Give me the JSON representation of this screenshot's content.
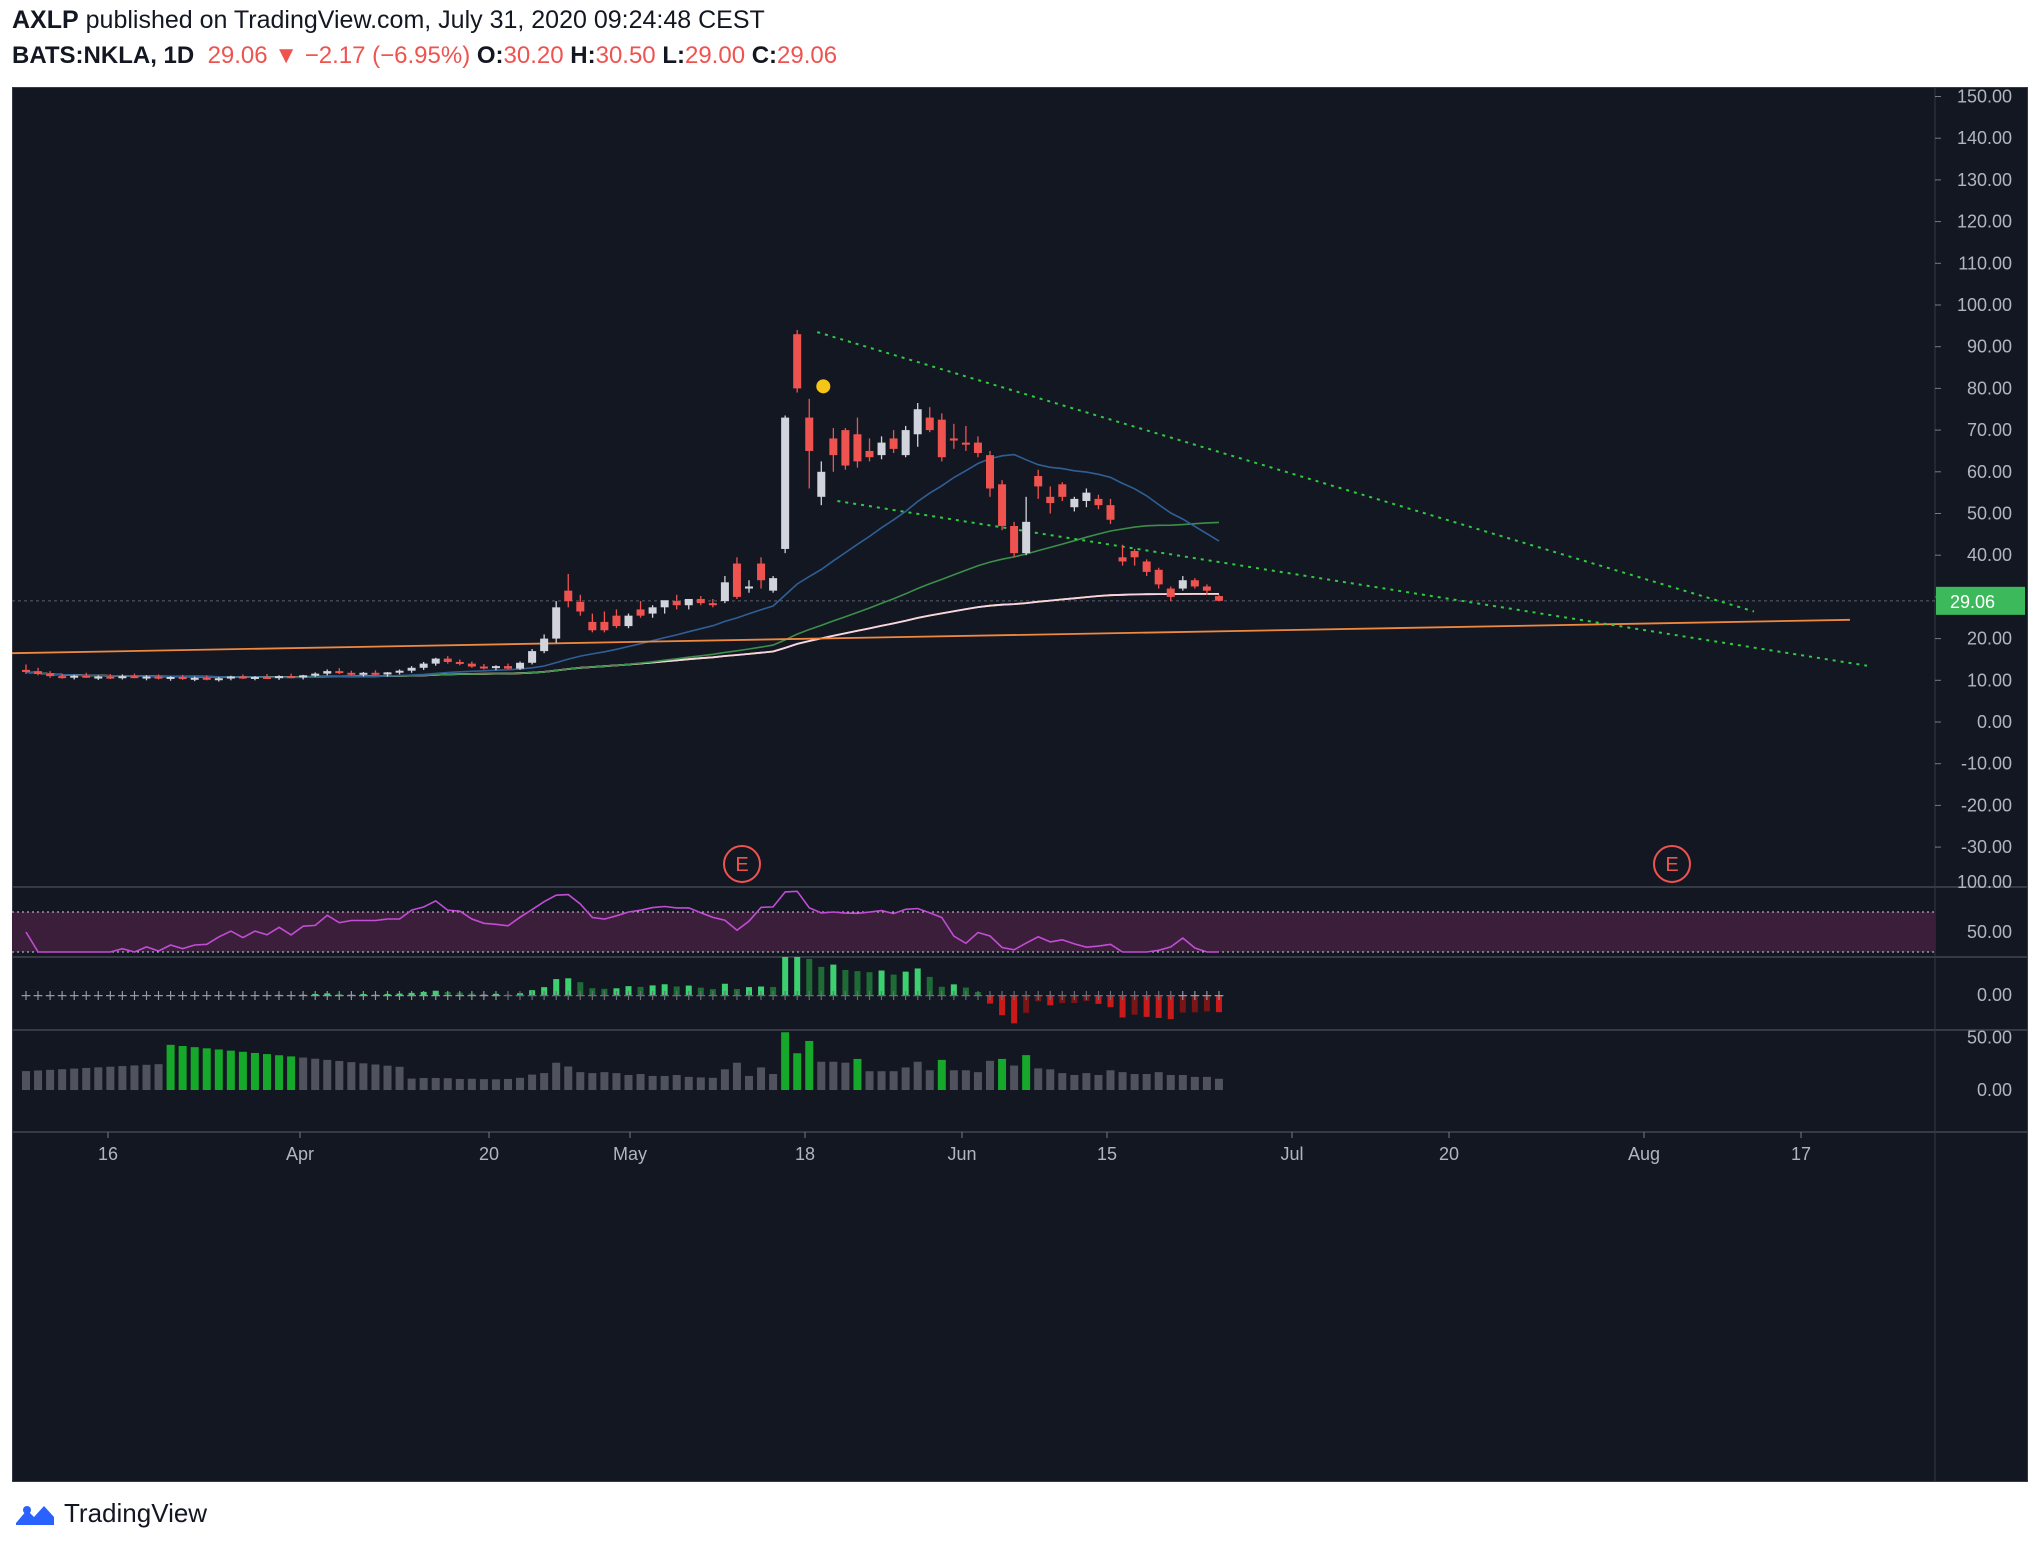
{
  "header": {
    "publisher": "AXLP",
    "published_text": "published on TradingView.com, July 31, 2020 09:24:48 CEST",
    "symbol": "BATS:NKLA, 1D",
    "last": "29.06",
    "change": "−2.17 (−6.95%)",
    "o_label": "O:",
    "o_val": "30.20",
    "h_label": "H:",
    "h_val": "30.50",
    "l_label": "L:",
    "l_val": "29.00",
    "c_label": "C:",
    "c_val": "29.06"
  },
  "footer": {
    "brand": "TradingView"
  },
  "colors": {
    "background": "#131722",
    "up": "#d1d4dc",
    "down": "#ef5350",
    "sma20": "#2f5f95",
    "sma50": "#3b8f4a",
    "sma100": "#f6d5e6",
    "sma150": "#c7c234",
    "sma200": "#8a1d45",
    "orange_trend": "#f0883e",
    "green_trend": "#2ecc40",
    "rsi": "#c34bd6",
    "price_label": "#3cb95a"
  },
  "chart_data": {
    "type": "candlestick",
    "symbol": "BATS:NKLA",
    "interval": "1D",
    "x_ticks": [
      "16",
      "Apr",
      "20",
      "May",
      "18",
      "Jun",
      "15",
      "Jul",
      "20",
      "Aug",
      "17"
    ],
    "y_ticks": [
      "150.00",
      "140.00",
      "130.00",
      "120.00",
      "110.00",
      "100.00",
      "90.00",
      "80.00",
      "70.00",
      "60.00",
      "50.00",
      "40.00",
      "30.00",
      "20.00",
      "10.00",
      "0.00",
      "-10.00",
      "-20.00",
      "-30.00"
    ],
    "ylim": [
      -35,
      155
    ],
    "last_price_label": "29.06",
    "earnings_markers": [
      "E",
      "E"
    ],
    "candles": [
      {
        "o": 12.5,
        "h": 13.8,
        "l": 11.5,
        "c": 12.0
      },
      {
        "o": 12.2,
        "h": 13.0,
        "l": 11.2,
        "c": 11.5
      },
      {
        "o": 11.6,
        "h": 12.2,
        "l": 10.6,
        "c": 11.0
      },
      {
        "o": 11.0,
        "h": 11.6,
        "l": 10.4,
        "c": 10.8
      },
      {
        "o": 10.8,
        "h": 11.3,
        "l": 10.2,
        "c": 11.1
      },
      {
        "o": 11.1,
        "h": 11.8,
        "l": 10.6,
        "c": 10.7
      },
      {
        "o": 10.7,
        "h": 11.2,
        "l": 10.1,
        "c": 10.9
      },
      {
        "o": 10.9,
        "h": 11.5,
        "l": 10.3,
        "c": 10.5
      },
      {
        "o": 10.5,
        "h": 11.4,
        "l": 10.2,
        "c": 11.0
      },
      {
        "o": 11.0,
        "h": 11.6,
        "l": 10.5,
        "c": 10.6
      },
      {
        "o": 10.6,
        "h": 11.2,
        "l": 10.0,
        "c": 10.9
      },
      {
        "o": 10.9,
        "h": 11.4,
        "l": 10.2,
        "c": 10.4
      },
      {
        "o": 10.4,
        "h": 11.0,
        "l": 9.9,
        "c": 10.8
      },
      {
        "o": 10.8,
        "h": 11.3,
        "l": 10.1,
        "c": 10.3
      },
      {
        "o": 10.3,
        "h": 10.9,
        "l": 9.8,
        "c": 10.6
      },
      {
        "o": 10.6,
        "h": 11.2,
        "l": 10.0,
        "c": 10.2
      },
      {
        "o": 10.2,
        "h": 10.8,
        "l": 9.7,
        "c": 10.5
      },
      {
        "o": 10.5,
        "h": 11.1,
        "l": 10.0,
        "c": 10.9
      },
      {
        "o": 10.9,
        "h": 11.4,
        "l": 10.3,
        "c": 10.5
      },
      {
        "o": 10.5,
        "h": 11.0,
        "l": 10.0,
        "c": 10.8
      },
      {
        "o": 10.8,
        "h": 11.5,
        "l": 10.3,
        "c": 10.6
      },
      {
        "o": 10.6,
        "h": 11.2,
        "l": 10.1,
        "c": 11.0
      },
      {
        "o": 11.0,
        "h": 11.6,
        "l": 10.5,
        "c": 10.7
      },
      {
        "o": 10.7,
        "h": 11.3,
        "l": 10.2,
        "c": 11.2
      },
      {
        "o": 11.2,
        "h": 11.9,
        "l": 10.8,
        "c": 11.6
      },
      {
        "o": 11.6,
        "h": 12.6,
        "l": 11.2,
        "c": 12.2
      },
      {
        "o": 12.2,
        "h": 12.9,
        "l": 11.5,
        "c": 11.8
      },
      {
        "o": 11.8,
        "h": 12.3,
        "l": 11.1,
        "c": 11.5
      },
      {
        "o": 11.5,
        "h": 12.0,
        "l": 10.9,
        "c": 11.8
      },
      {
        "o": 11.8,
        "h": 12.4,
        "l": 11.3,
        "c": 11.4
      },
      {
        "o": 11.4,
        "h": 12.0,
        "l": 10.9,
        "c": 11.9
      },
      {
        "o": 11.9,
        "h": 12.6,
        "l": 11.4,
        "c": 12.3
      },
      {
        "o": 12.3,
        "h": 13.4,
        "l": 11.8,
        "c": 13.0
      },
      {
        "o": 13.0,
        "h": 14.4,
        "l": 12.5,
        "c": 14.0
      },
      {
        "o": 14.0,
        "h": 15.4,
        "l": 13.5,
        "c": 15.2
      },
      {
        "o": 15.2,
        "h": 15.8,
        "l": 14.0,
        "c": 14.4
      },
      {
        "o": 14.4,
        "h": 15.0,
        "l": 13.6,
        "c": 14.0
      },
      {
        "o": 14.0,
        "h": 14.5,
        "l": 13.0,
        "c": 13.3
      },
      {
        "o": 13.3,
        "h": 13.9,
        "l": 12.6,
        "c": 13.0
      },
      {
        "o": 13.0,
        "h": 13.6,
        "l": 12.4,
        "c": 13.4
      },
      {
        "o": 13.4,
        "h": 14.0,
        "l": 12.6,
        "c": 12.8
      },
      {
        "o": 12.8,
        "h": 14.5,
        "l": 12.5,
        "c": 14.2
      },
      {
        "o": 14.2,
        "h": 17.5,
        "l": 13.8,
        "c": 17.0
      },
      {
        "o": 17.0,
        "h": 21.0,
        "l": 16.5,
        "c": 20.0
      },
      {
        "o": 20.0,
        "h": 29.0,
        "l": 19.0,
        "c": 27.5
      },
      {
        "o": 31.5,
        "h": 35.5,
        "l": 27.5,
        "c": 29.0
      },
      {
        "o": 28.8,
        "h": 30.5,
        "l": 25.5,
        "c": 26.5
      },
      {
        "o": 24.0,
        "h": 26.0,
        "l": 21.5,
        "c": 22.0
      },
      {
        "o": 24.0,
        "h": 26.5,
        "l": 21.5,
        "c": 22.0
      },
      {
        "o": 25.5,
        "h": 27.0,
        "l": 22.5,
        "c": 23.0
      },
      {
        "o": 23.0,
        "h": 26.0,
        "l": 22.5,
        "c": 25.5
      },
      {
        "o": 27.0,
        "h": 29.0,
        "l": 25.0,
        "c": 25.5
      },
      {
        "o": 26.0,
        "h": 28.0,
        "l": 25.0,
        "c": 27.5
      },
      {
        "o": 27.5,
        "h": 29.0,
        "l": 26.0,
        "c": 29.2
      },
      {
        "o": 29.0,
        "h": 30.5,
        "l": 27.0,
        "c": 28.0
      },
      {
        "o": 28.0,
        "h": 29.5,
        "l": 27.0,
        "c": 29.5
      },
      {
        "o": 29.5,
        "h": 30.2,
        "l": 28.0,
        "c": 28.5
      },
      {
        "o": 28.5,
        "h": 29.5,
        "l": 27.5,
        "c": 28.0
      },
      {
        "o": 29.0,
        "h": 35.0,
        "l": 28.5,
        "c": 33.5
      },
      {
        "o": 38.0,
        "h": 39.5,
        "l": 29.5,
        "c": 30.0
      },
      {
        "o": 32.0,
        "h": 34.0,
        "l": 31.0,
        "c": 32.5
      },
      {
        "o": 38.0,
        "h": 39.5,
        "l": 32.0,
        "c": 34.0
      },
      {
        "o": 31.5,
        "h": 35.0,
        "l": 31.0,
        "c": 34.5
      },
      {
        "o": 41.5,
        "h": 73.5,
        "l": 40.5,
        "c": 73.0
      },
      {
        "o": 93.0,
        "h": 94.0,
        "l": 79.0,
        "c": 80.0
      },
      {
        "o": 73.0,
        "h": 77.5,
        "l": 56.0,
        "c": 65.0
      },
      {
        "o": 54.0,
        "h": 62.5,
        "l": 52.0,
        "c": 60.0
      },
      {
        "o": 68.0,
        "h": 70.5,
        "l": 60.0,
        "c": 64.0
      },
      {
        "o": 70.0,
        "h": 70.5,
        "l": 60.5,
        "c": 61.5
      },
      {
        "o": 69.0,
        "h": 73.0,
        "l": 61.0,
        "c": 62.5
      },
      {
        "o": 65.0,
        "h": 68.0,
        "l": 62.5,
        "c": 63.5
      },
      {
        "o": 64.0,
        "h": 68.5,
        "l": 63.0,
        "c": 67.0
      },
      {
        "o": 68.0,
        "h": 70.0,
        "l": 64.5,
        "c": 65.5
      },
      {
        "o": 64.0,
        "h": 71.0,
        "l": 63.5,
        "c": 70.0
      },
      {
        "o": 69.0,
        "h": 76.5,
        "l": 66.0,
        "c": 75.0
      },
      {
        "o": 73.0,
        "h": 75.5,
        "l": 69.5,
        "c": 70.0
      },
      {
        "o": 72.5,
        "h": 74.0,
        "l": 62.5,
        "c": 63.5
      },
      {
        "o": 68.0,
        "h": 71.5,
        "l": 65.5,
        "c": 67.5
      },
      {
        "o": 67.0,
        "h": 71.0,
        "l": 65.0,
        "c": 66.5
      },
      {
        "o": 67.0,
        "h": 68.5,
        "l": 63.5,
        "c": 64.5
      },
      {
        "o": 64.0,
        "h": 65.0,
        "l": 54.0,
        "c": 56.0
      },
      {
        "o": 57.0,
        "h": 58.0,
        "l": 46.0,
        "c": 47.0
      },
      {
        "o": 47.0,
        "h": 48.0,
        "l": 39.5,
        "c": 40.5
      },
      {
        "o": 40.5,
        "h": 54.0,
        "l": 40.0,
        "c": 48.0
      },
      {
        "o": 59.0,
        "h": 60.5,
        "l": 53.5,
        "c": 56.5
      },
      {
        "o": 54.0,
        "h": 56.5,
        "l": 50.0,
        "c": 52.5
      },
      {
        "o": 57.0,
        "h": 57.5,
        "l": 53.0,
        "c": 54.0
      },
      {
        "o": 51.5,
        "h": 54.0,
        "l": 50.5,
        "c": 53.5
      },
      {
        "o": 53.0,
        "h": 56.0,
        "l": 51.5,
        "c": 55.0
      },
      {
        "o": 53.5,
        "h": 54.5,
        "l": 51.0,
        "c": 52.0
      },
      {
        "o": 52.0,
        "h": 53.5,
        "l": 47.5,
        "c": 48.5
      },
      {
        "o": 39.5,
        "h": 42.5,
        "l": 37.5,
        "c": 38.5
      },
      {
        "o": 41.0,
        "h": 41.5,
        "l": 37.5,
        "c": 39.5
      },
      {
        "o": 38.5,
        "h": 39.0,
        "l": 35.0,
        "c": 36.0
      },
      {
        "o": 36.5,
        "h": 37.0,
        "l": 32.0,
        "c": 33.0
      },
      {
        "o": 32.0,
        "h": 32.5,
        "l": 29.0,
        "c": 30.0
      },
      {
        "o": 32.0,
        "h": 35.0,
        "l": 31.5,
        "c": 34.0
      },
      {
        "o": 34.0,
        "h": 34.5,
        "l": 32.0,
        "c": 32.5
      },
      {
        "o": 32.5,
        "h": 33.0,
        "l": 30.5,
        "c": 31.5
      },
      {
        "o": 30.2,
        "h": 30.5,
        "l": 29.0,
        "c": 29.06
      }
    ]
  },
  "rsi": {
    "ticks": [
      "100.00",
      "50.00"
    ]
  },
  "squeeze": {
    "ticks": [
      "0.00"
    ]
  },
  "volume_pane": {
    "ticks": [
      "50.00",
      "0.00"
    ]
  }
}
